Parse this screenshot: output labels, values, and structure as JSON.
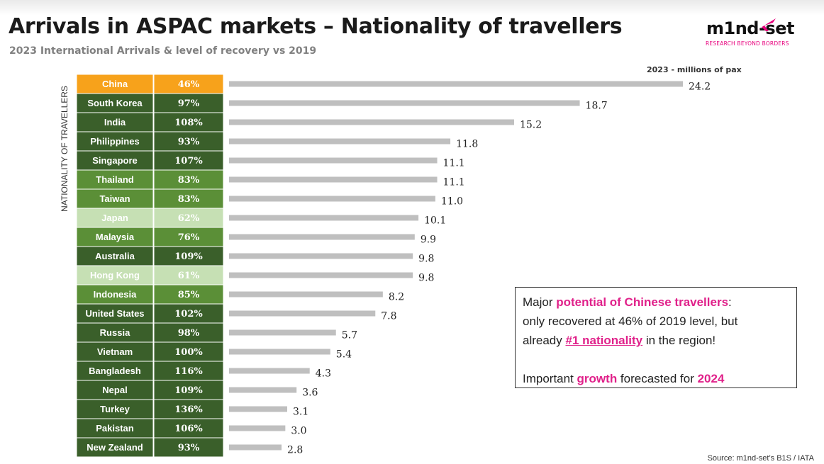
{
  "header": {
    "title": "Arrivals in ASPAC markets – Nationality of travellers",
    "subtitle": "2023 International Arrivals & level of recovery vs 2019"
  },
  "logo": {
    "wordmark": "m1nd-set",
    "tagline": "RESEARCH BEYOND BORDERS"
  },
  "colors": {
    "highlight_orange": "#f7a21b",
    "dark_green": "#3a5f2a",
    "mid_green": "#5b8f37",
    "light_green": "#c6e0b4",
    "bar_gray": "#bfbfbf",
    "accent_pink": "#e0218a"
  },
  "chart_data": {
    "type": "bar",
    "orientation": "horizontal",
    "unit_label": "2023 - millions of pax",
    "y_axis_label": "NATIONALITY OF TRAVELLERS",
    "categories": [
      "China",
      "South Korea",
      "India",
      "Philippines",
      "Singapore",
      "Thailand",
      "Taiwan",
      "Japan",
      "Malaysia",
      "Australia",
      "Hong Kong",
      "Indonesia",
      "United States",
      "Russia",
      "Vietnam",
      "Bangladesh",
      "Nepal",
      "Turkey",
      "Pakistan",
      "New Zealand"
    ],
    "values": [
      24.2,
      18.7,
      15.2,
      11.8,
      11.1,
      11.1,
      11.0,
      10.1,
      9.9,
      9.8,
      9.8,
      8.2,
      7.8,
      5.7,
      5.4,
      4.3,
      3.6,
      3.1,
      3.0,
      2.8
    ],
    "value_labels": [
      "24.2",
      "18.7",
      "15.2",
      "11.8",
      "11.1",
      "11.1",
      "11.0",
      "10.1",
      "9.9",
      "9.8",
      "9.8",
      "8.2",
      "7.8",
      "5.7",
      "5.4",
      "4.3",
      "3.6",
      "3.1",
      "3.0",
      "2.8"
    ],
    "recovery_vs_2019": [
      "46%",
      "97%",
      "108%",
      "93%",
      "107%",
      "83%",
      "83%",
      "62%",
      "76%",
      "109%",
      "61%",
      "85%",
      "102%",
      "98%",
      "100%",
      "116%",
      "109%",
      "136%",
      "106%",
      "93%"
    ],
    "row_tone": [
      "orange",
      "dark",
      "dark",
      "dark",
      "dark",
      "mid",
      "mid",
      "light",
      "mid",
      "dark",
      "light",
      "mid",
      "dark",
      "dark",
      "dark",
      "dark",
      "dark",
      "dark",
      "dark",
      "dark"
    ],
    "xlim": [
      0,
      24.2
    ],
    "grid": false,
    "legend": "none"
  },
  "callout": {
    "line1_pre": "Major ",
    "line1_hl": "potential of Chinese travellers",
    "line1_post": ":",
    "line2": "only recovered at 46% of 2019 level, but",
    "line3_pre": "already ",
    "line3_hl": "#1 nationality",
    "line3_post": " in the region!",
    "line4_pre": "Important ",
    "line4_hl1": "growth",
    "line4_mid": " forecasted for ",
    "line4_hl2": "2024"
  },
  "footer": {
    "source": "Source: m1nd-set’s B1S / IATA"
  }
}
